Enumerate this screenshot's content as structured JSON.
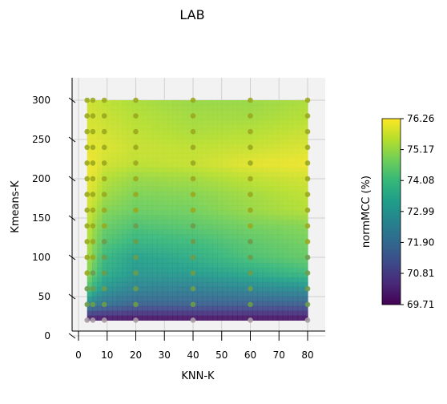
{
  "chart_data": {
    "type": "heatmap",
    "title": "LAB",
    "xlabel": "KNN-K",
    "ylabel": "Kmeans-K",
    "colorbar_label": "normMCC (%)",
    "x_ticks": [
      0,
      10,
      20,
      30,
      40,
      50,
      60,
      70,
      80
    ],
    "y_ticks": [
      0,
      50,
      100,
      150,
      200,
      250,
      300
    ],
    "xlim": [
      -2,
      85
    ],
    "ylim": [
      0,
      320
    ],
    "colorbar_ticks": [
      "69.71",
      "70.81",
      "71.90",
      "72.99",
      "74.08",
      "75.17",
      "76.26"
    ],
    "colorbar_range": [
      69.71,
      76.26
    ],
    "colormap": "viridis",
    "grid": true,
    "knn_k_values": [
      3,
      5,
      9,
      20,
      40,
      60,
      80
    ],
    "kmeans_k_values": [
      20,
      40,
      60,
      80,
      100,
      120,
      140,
      160,
      180,
      200,
      220,
      240,
      260,
      280,
      300
    ],
    "surface_extent": {
      "x": [
        3,
        80
      ],
      "y": [
        20,
        300
      ]
    },
    "value_grid": [
      [
        69.8,
        69.8,
        69.8,
        69.8,
        69.8,
        69.8,
        69.8
      ],
      [
        72.6,
        72.3,
        72.0,
        71.6,
        71.6,
        71.5,
        71.5
      ],
      [
        74.5,
        73.8,
        73.0,
        72.5,
        72.4,
        72.6,
        72.8
      ],
      [
        75.2,
        74.6,
        73.7,
        73.1,
        73.2,
        73.6,
        74.1
      ],
      [
        75.4,
        74.9,
        74.0,
        73.3,
        73.7,
        74.3,
        74.6
      ],
      [
        75.6,
        75.1,
        74.4,
        73.9,
        74.1,
        74.5,
        74.8
      ],
      [
        75.7,
        75.3,
        74.7,
        74.3,
        74.5,
        74.8,
        75.0
      ],
      [
        75.8,
        75.6,
        75.0,
        74.7,
        74.8,
        75.2,
        75.5
      ],
      [
        75.9,
        75.8,
        75.3,
        74.9,
        75.0,
        75.3,
        75.6
      ],
      [
        76.0,
        76.0,
        75.5,
        75.2,
        75.3,
        75.6,
        75.8
      ],
      [
        76.1,
        76.1,
        75.8,
        75.6,
        75.7,
        76.0,
        76.1
      ],
      [
        76.0,
        76.0,
        75.9,
        75.7,
        75.6,
        75.7,
        75.9
      ],
      [
        75.9,
        75.9,
        75.8,
        75.6,
        75.4,
        75.5,
        75.7
      ],
      [
        75.8,
        75.8,
        75.7,
        75.5,
        75.3,
        75.3,
        75.5
      ],
      [
        75.8,
        75.7,
        75.6,
        75.4,
        75.2,
        75.2,
        75.4
      ]
    ]
  }
}
